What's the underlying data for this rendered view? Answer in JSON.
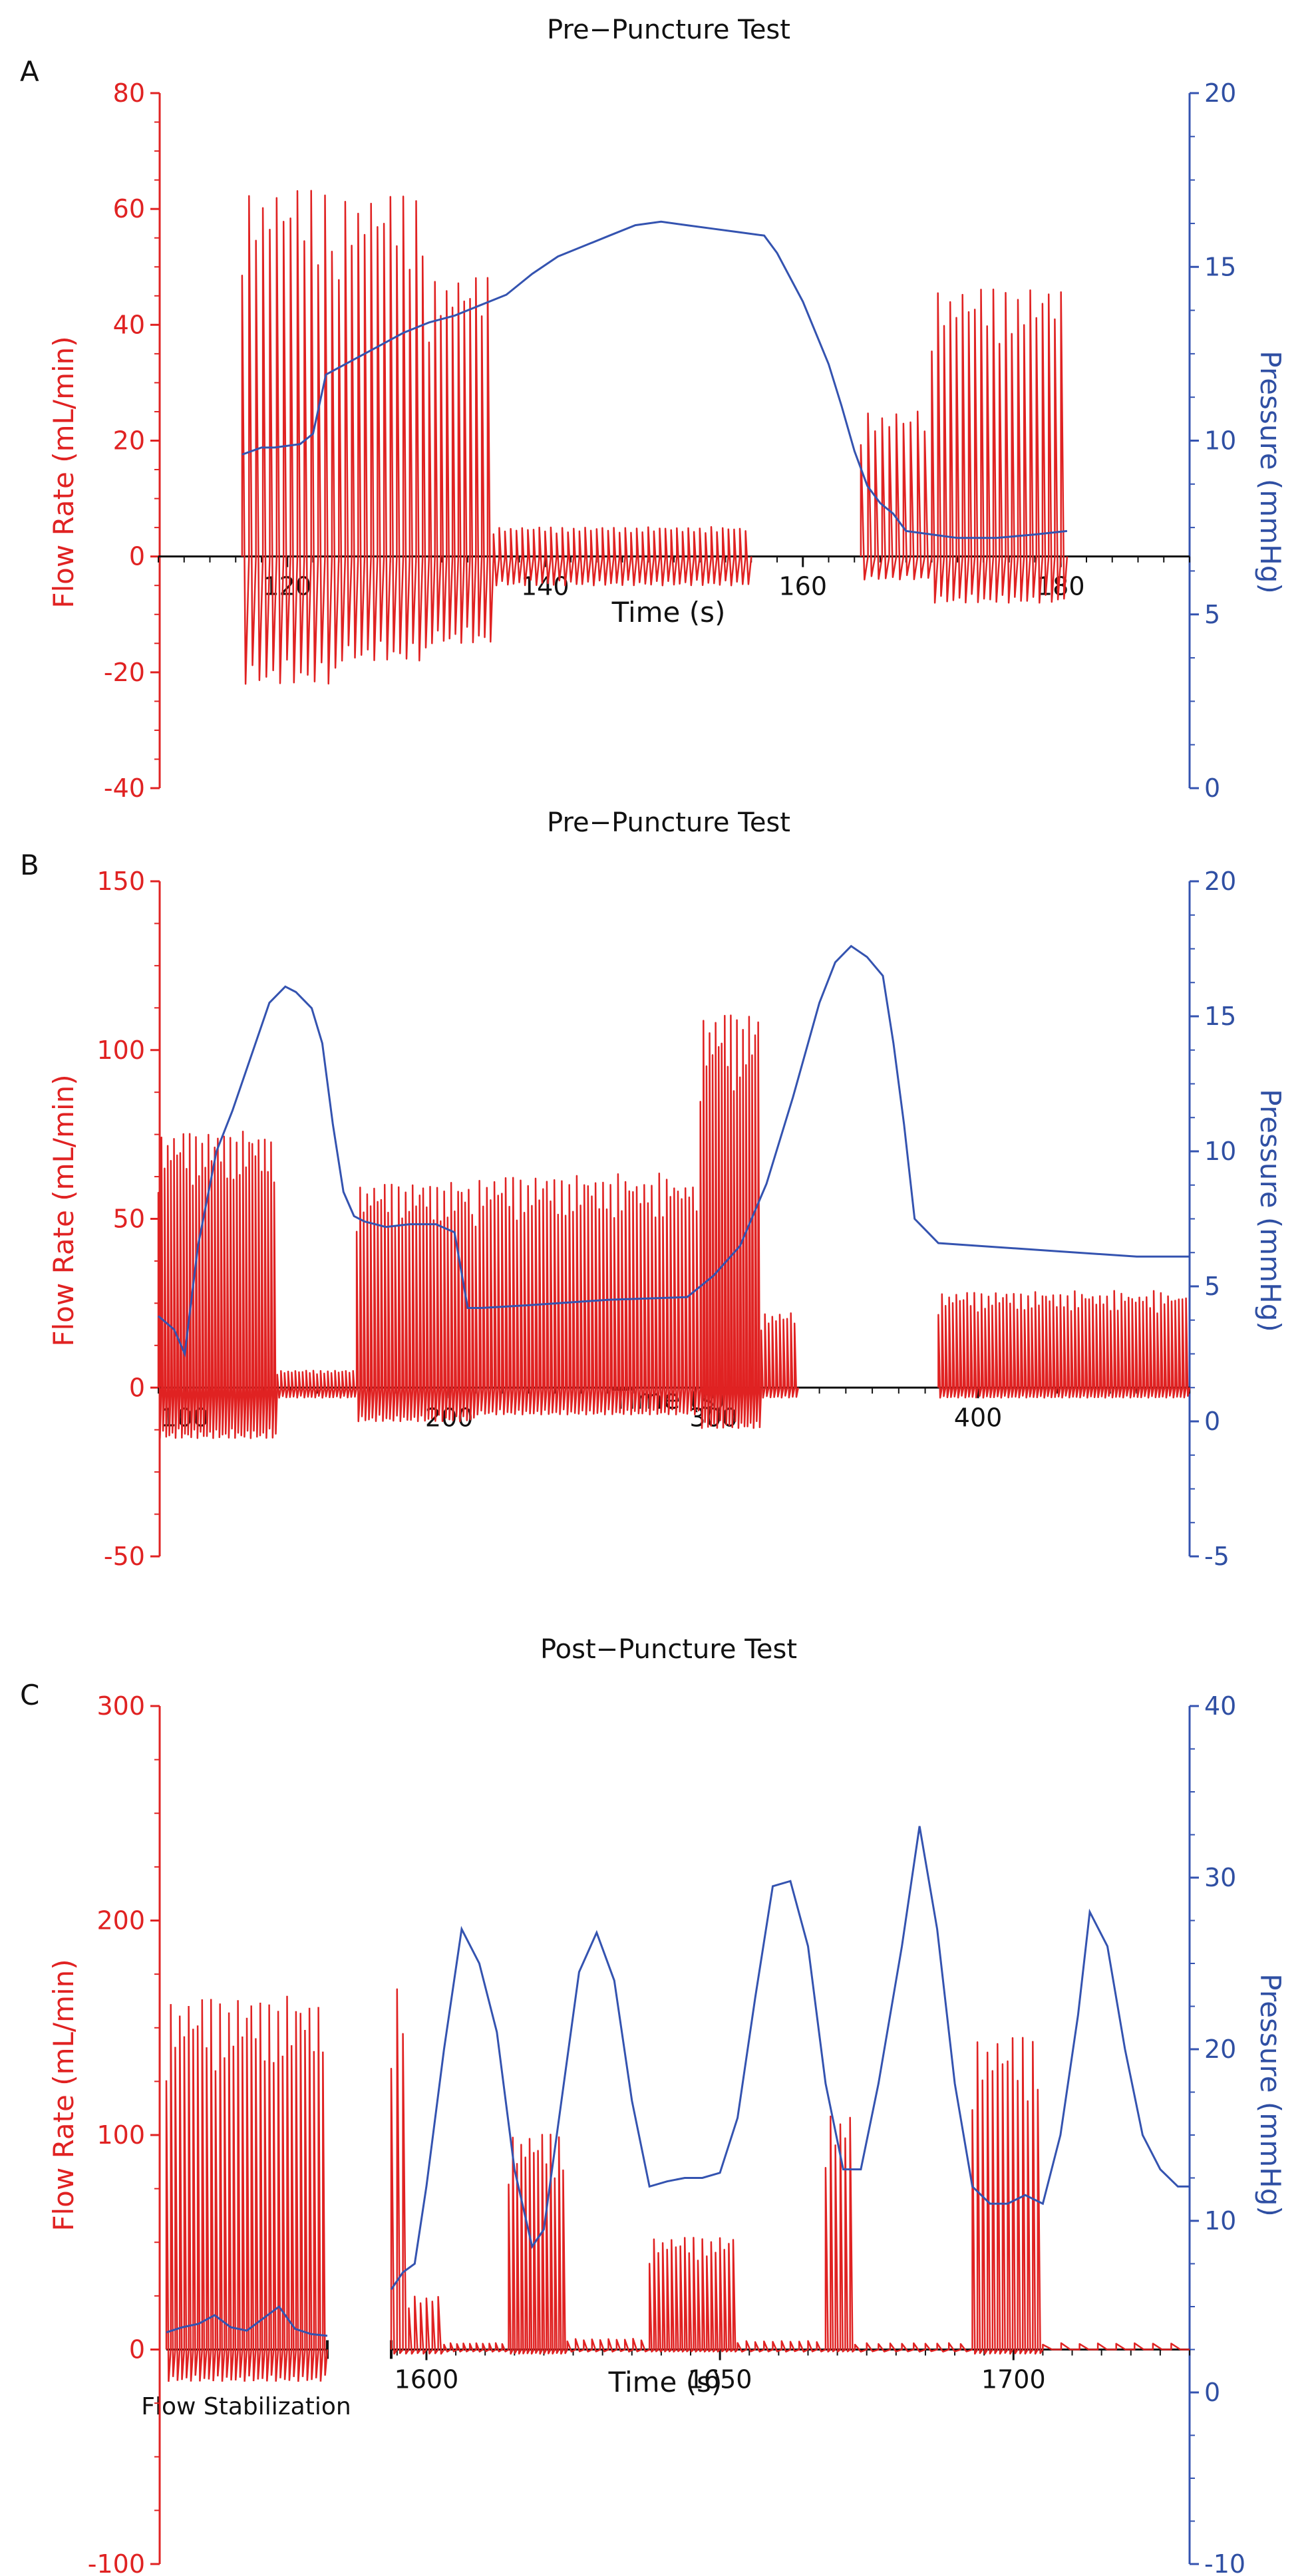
{
  "colors": {
    "flow": "#e02222",
    "pressure": "#3453b0",
    "axis_left": "#e02222",
    "axis_right": "#3453b0",
    "axis_x": "#111111"
  },
  "chart_data": [
    {
      "panel": "A",
      "type": "line",
      "title": "Pre-Puncture Test",
      "xlabel": "Time (s)",
      "ylabel_left": "Flow Rate (mL/min)",
      "ylabel_right": "Pressure (mmHg)",
      "xlim": [
        110,
        190
      ],
      "ylim_left": [
        -40,
        80
      ],
      "ylim_right": [
        0,
        20
      ],
      "xticks": [
        120,
        140,
        160,
        180
      ],
      "yticks_left": [
        -40,
        -20,
        0,
        20,
        40,
        60,
        80
      ],
      "yticks_right": [
        0,
        5,
        10,
        15,
        20
      ],
      "series": [
        {
          "name": "Flow Rate",
          "axis": "left",
          "style": "oscillation",
          "segments": [
            {
              "x0": 116.5,
              "x1": 124,
              "min": -22,
              "max": 63,
              "n": 14
            },
            {
              "x0": 124,
              "x1": 131,
              "min": -18,
              "max": 62,
              "n": 14
            },
            {
              "x0": 131,
              "x1": 136,
              "min": -15,
              "max": 48,
              "n": 11
            },
            {
              "x0": 136,
              "x1": 156,
              "min": -5,
              "max": 5,
              "n": 45
            },
            {
              "x0": 164.5,
              "x1": 170,
              "min": -4,
              "max": 25,
              "n": 10
            },
            {
              "x0": 170,
              "x1": 180.5,
              "min": -8,
              "max": 46,
              "n": 22
            }
          ]
        },
        {
          "name": "Pressure",
          "axis": "right",
          "x": [
            116.5,
            118,
            119,
            121,
            122,
            123,
            125,
            127,
            129,
            131,
            133,
            135,
            137,
            139,
            141,
            143,
            145,
            147,
            149,
            151,
            153,
            155,
            157,
            158,
            160,
            162,
            163,
            164,
            165,
            166,
            167,
            168,
            170,
            172,
            175,
            178,
            180.5
          ],
          "y": [
            9.6,
            9.8,
            9.8,
            9.9,
            10.2,
            11.9,
            12.3,
            12.7,
            13.1,
            13.4,
            13.6,
            13.9,
            14.2,
            14.8,
            15.3,
            15.6,
            15.9,
            16.2,
            16.3,
            16.2,
            16.1,
            16.0,
            15.9,
            15.4,
            14.0,
            12.2,
            11.0,
            9.7,
            8.7,
            8.2,
            7.9,
            7.4,
            7.3,
            7.2,
            7.2,
            7.3,
            7.4
          ]
        }
      ]
    },
    {
      "panel": "B",
      "type": "line",
      "title": "Pre-Puncture Test",
      "xlabel": "Time (s)",
      "ylabel_left": "Flow Rate (mL/min)",
      "ylabel_right": "Pressure (mmHg)",
      "xlim": [
        90,
        480
      ],
      "ylim_left": [
        -50,
        150
      ],
      "ylim_right": [
        -5,
        20
      ],
      "xticks": [
        100,
        200,
        300,
        400
      ],
      "yticks_left": [
        -50,
        0,
        50,
        100,
        150
      ],
      "yticks_right": [
        -5,
        0,
        5,
        10,
        15,
        20
      ],
      "series": [
        {
          "name": "Flow Rate",
          "axis": "left",
          "style": "oscillation",
          "segments": [
            {
              "x0": 90,
              "x1": 135,
              "min": -15,
              "max": 75,
              "n": 38
            },
            {
              "x0": 135,
              "x1": 165,
              "min": -3,
              "max": 5,
              "n": 22
            },
            {
              "x0": 165,
              "x1": 210,
              "min": -10,
              "max": 60,
              "n": 34
            },
            {
              "x0": 210,
              "x1": 295,
              "min": -8,
              "max": 62,
              "n": 60
            },
            {
              "x0": 295,
              "x1": 318,
              "min": -12,
              "max": 110,
              "n": 20
            },
            {
              "x0": 318,
              "x1": 332,
              "min": -3,
              "max": 22,
              "n": 10
            },
            {
              "x0": 385,
              "x1": 480,
              "min": -3,
              "max": 28,
              "n": 70
            }
          ]
        },
        {
          "name": "Pressure",
          "axis": "right",
          "x": [
            90,
            96,
            100,
            105,
            112,
            118,
            125,
            132,
            138,
            142,
            148,
            152,
            156,
            160,
            164,
            168,
            172,
            176,
            185,
            195,
            202,
            207,
            212,
            230,
            260,
            290,
            300,
            310,
            320,
            330,
            340,
            346,
            352,
            358,
            364,
            368,
            372,
            376,
            385,
            400,
            430,
            460,
            480
          ],
          "y": [
            3.9,
            3.4,
            2.5,
            6.5,
            10.0,
            11.5,
            13.5,
            15.5,
            16.1,
            15.9,
            15.3,
            14.0,
            11.0,
            8.5,
            7.6,
            7.4,
            7.3,
            7.2,
            7.3,
            7.3,
            7.0,
            4.2,
            4.2,
            4.3,
            4.5,
            4.6,
            5.4,
            6.5,
            8.8,
            12.0,
            15.5,
            17.0,
            17.6,
            17.2,
            16.5,
            14.0,
            11.0,
            7.5,
            6.6,
            6.5,
            6.3,
            6.1,
            6.1
          ]
        }
      ]
    },
    {
      "panel": "C",
      "type": "line",
      "title": "Post-Puncture Test",
      "xlabel": "Time (s)",
      "ylabel_left": "Flow Rate (mL/min)",
      "ylabel_right": "Pressure (mmHg)",
      "annotation": "Flow Stabilization",
      "xlim": [
        1594,
        1730
      ],
      "ylim_left": [
        -100,
        300
      ],
      "ylim_right": [
        -10,
        40
      ],
      "xticks": [
        1600,
        1650,
        1700
      ],
      "yticks_left": [
        -100,
        0,
        100,
        200,
        300
      ],
      "yticks_right": [
        -10,
        0,
        10,
        20,
        30,
        40
      ],
      "stabilization_segment": {
        "flow": {
          "min": -15,
          "max": 163,
          "n": 36
        },
        "pressure": [
          3.5,
          3.8,
          4.0,
          4.5,
          3.8,
          3.6,
          4.3,
          5.0,
          3.7,
          3.4,
          3.3
        ]
      },
      "series": [
        {
          "name": "Flow Rate",
          "axis": "left",
          "style": "oscillation",
          "segments": [
            {
              "x0": 1594,
              "x1": 1597,
              "min": -2,
              "max": 170,
              "n": 3
            },
            {
              "x0": 1597,
              "x1": 1603,
              "min": -2,
              "max": 25,
              "n": 6
            },
            {
              "x0": 1603,
              "x1": 1614,
              "min": -1,
              "max": 3,
              "n": 10
            },
            {
              "x0": 1614,
              "x1": 1624,
              "min": -2,
              "max": 100,
              "n": 14
            },
            {
              "x0": 1624,
              "x1": 1638,
              "min": -1,
              "max": 5,
              "n": 10
            },
            {
              "x0": 1638,
              "x1": 1653,
              "min": -1,
              "max": 52,
              "n": 20
            },
            {
              "x0": 1653,
              "x1": 1668,
              "min": -1,
              "max": 4,
              "n": 10
            },
            {
              "x0": 1668,
              "x1": 1673,
              "min": -1,
              "max": 110,
              "n": 6
            },
            {
              "x0": 1673,
              "x1": 1693,
              "min": -1,
              "max": 3,
              "n": 10
            },
            {
              "x0": 1693,
              "x1": 1705,
              "min": -2,
              "max": 145,
              "n": 14
            },
            {
              "x0": 1705,
              "x1": 1730,
              "min": 0,
              "max": 3,
              "n": 8
            }
          ]
        },
        {
          "name": "Pressure",
          "axis": "right",
          "x": [
            1594,
            1596,
            1598,
            1600,
            1603,
            1606,
            1609,
            1612,
            1615,
            1618,
            1620,
            1623,
            1626,
            1629,
            1632,
            1635,
            1638,
            1641,
            1644,
            1647,
            1650,
            1653,
            1656,
            1659,
            1662,
            1665,
            1668,
            1671,
            1674,
            1677,
            1681,
            1684,
            1687,
            1690,
            1693,
            1696,
            1699,
            1702,
            1705,
            1708,
            1711,
            1713,
            1716,
            1719,
            1722,
            1725,
            1728,
            1730
          ],
          "y": [
            6.0,
            7.0,
            7.5,
            12.0,
            20.0,
            27.0,
            25.0,
            21.0,
            13.0,
            8.5,
            9.5,
            17.0,
            24.5,
            26.8,
            24.0,
            17.0,
            12.0,
            12.3,
            12.5,
            12.5,
            12.8,
            16.0,
            23.0,
            29.5,
            29.8,
            26.0,
            18.0,
            13.0,
            13.0,
            18.0,
            26.0,
            33.0,
            27.0,
            18.0,
            12.0,
            11.0,
            11.0,
            11.5,
            11.0,
            15.0,
            22.0,
            28.0,
            26.0,
            20.0,
            15.0,
            13.0,
            12.0,
            12.0
          ]
        }
      ]
    }
  ],
  "labels": {
    "panel_letters": [
      "A",
      "B",
      "C"
    ],
    "titles": [
      "Pre−Puncture Test",
      "Pre−Puncture Test",
      "Post−Puncture Test"
    ],
    "xlabels": [
      "Time (s)",
      "Time (s)",
      "Time (s)"
    ],
    "ylabel_left": "Flow Rate (mL/min)",
    "ylabel_right": "Pressure (mmHg)",
    "annotation": "Flow Stabilization"
  }
}
